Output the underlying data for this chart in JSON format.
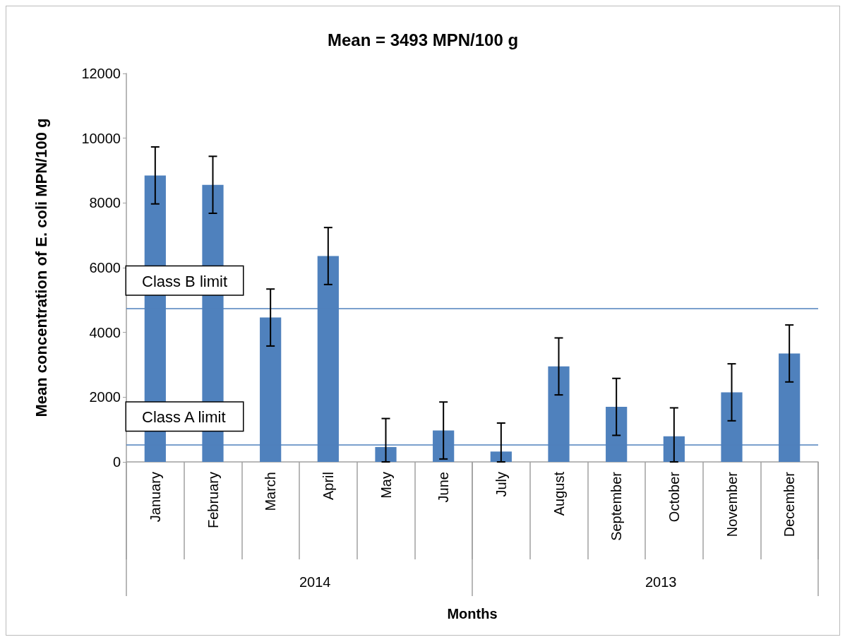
{
  "chart_data": {
    "type": "bar",
    "title": "Mean = 3493 MPN/100 g",
    "xlabel": "Months",
    "ylabel": "Mean concentration of E. coli MPN/100 g",
    "categories": [
      "January",
      "February",
      "March",
      "April",
      "May",
      "June",
      "July",
      "August",
      "September",
      "October",
      "November",
      "December"
    ],
    "values": [
      8850,
      8560,
      4460,
      6360,
      460,
      970,
      320,
      2950,
      1700,
      790,
      2150,
      3350
    ],
    "errors": [
      880,
      880,
      880,
      880,
      [
        0,
        1340
      ],
      880,
      [
        0,
        1200
      ],
      880,
      880,
      [
        0,
        1670
      ],
      880,
      880
    ],
    "color": "#4f81bd",
    "ylim": [
      0,
      12000
    ],
    "yticks": [
      0,
      2000,
      4000,
      6000,
      8000,
      10000,
      12000
    ],
    "grid": false,
    "ref_lines": [
      {
        "axis": "y",
        "value": 4730,
        "label": "Class B limit",
        "color": "#4f81bd"
      },
      {
        "axis": "y",
        "value": 530,
        "label": "Class A limit",
        "color": "#4f81bd"
      }
    ],
    "annotations": [
      "2014",
      "2013"
    ]
  }
}
